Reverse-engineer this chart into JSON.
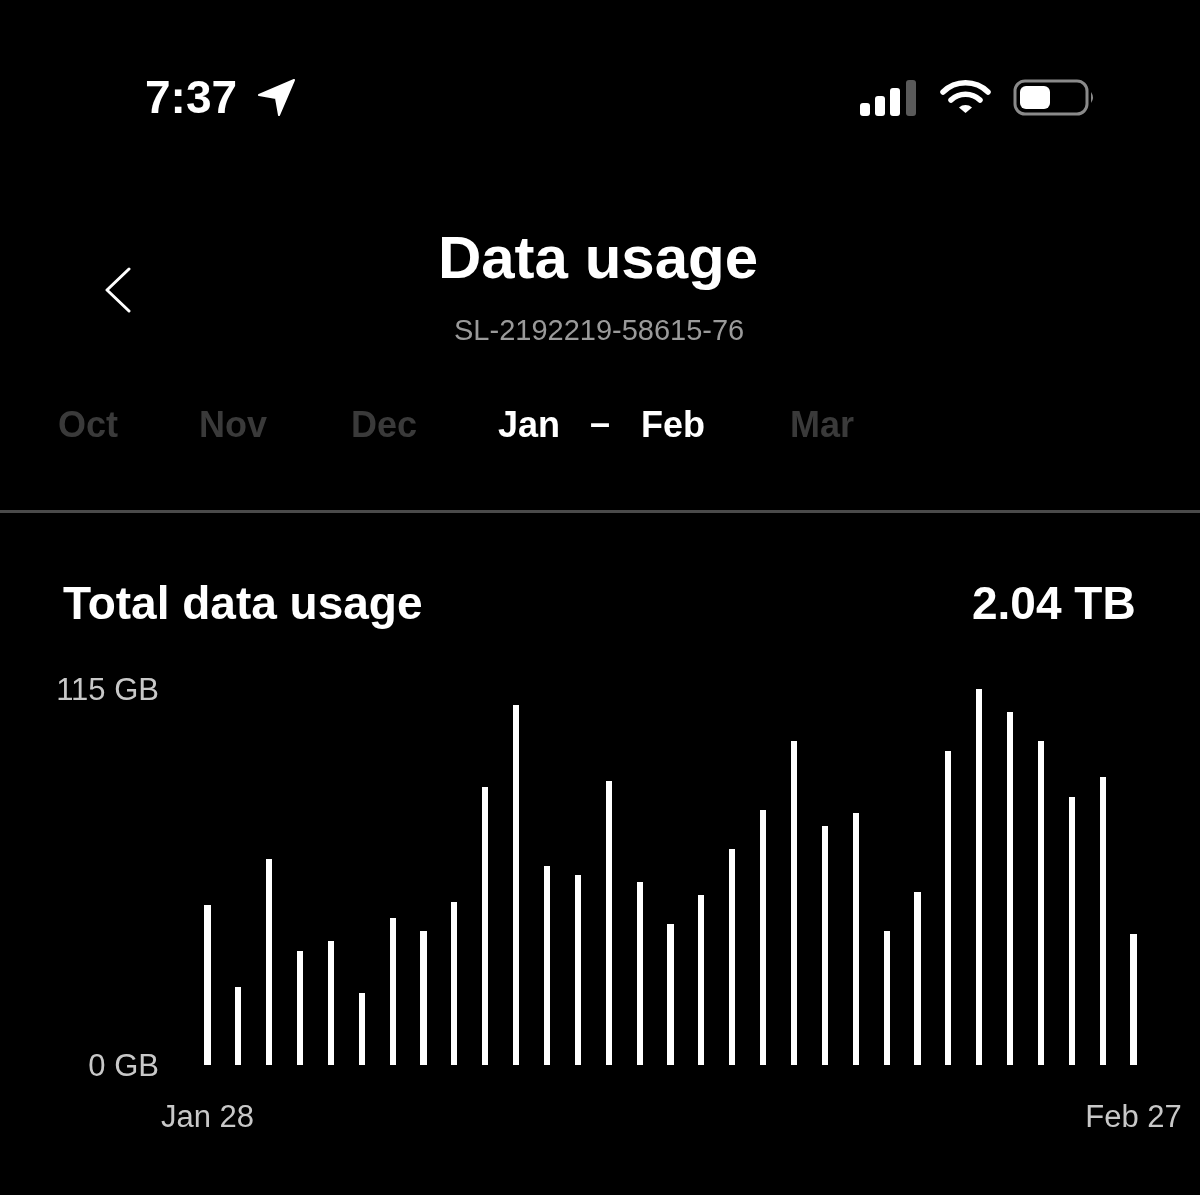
{
  "chart_data": {
    "type": "bar",
    "title": "Data usage",
    "subtitle": "SL-2192219-58615-76",
    "annotations": [
      "7:37",
      "Oct",
      "Nov",
      "Dec",
      "Jan",
      "–",
      "Feb",
      "Mar",
      "Total data usage",
      "2.04 TB"
    ],
    "categories": [
      "Jan 28",
      null,
      null,
      null,
      null,
      null,
      null,
      null,
      null,
      null,
      null,
      null,
      null,
      null,
      null,
      null,
      null,
      null,
      null,
      null,
      null,
      null,
      null,
      null,
      null,
      null,
      null,
      null,
      null,
      null,
      "Feb 27"
    ],
    "values": [
      49,
      24,
      63,
      35,
      38,
      22,
      45,
      41,
      50,
      85,
      110,
      61,
      58,
      87,
      56,
      43,
      52,
      66,
      78,
      99,
      73,
      77,
      41,
      53,
      96,
      115,
      108,
      99,
      82,
      88,
      40
    ],
    "color": "#ffffff",
    "ylim": [
      0,
      115
    ],
    "yticks": [
      {
        "value": 0,
        "label": "0 GB"
      },
      {
        "value": 115,
        "label": "115 GB"
      }
    ]
  }
}
